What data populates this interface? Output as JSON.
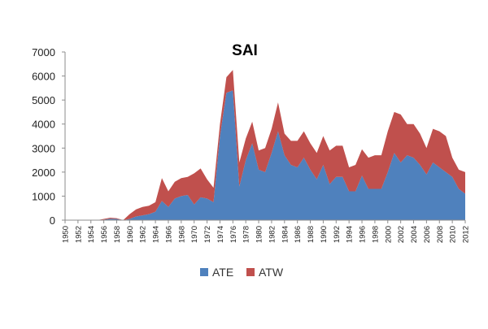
{
  "chart_data": {
    "type": "area",
    "title": "SAI",
    "xlabel": "",
    "ylabel": "",
    "stacked": true,
    "xlim": [
      1950,
      2012
    ],
    "ylim": [
      0,
      7000
    ],
    "y_ticks": [
      0,
      1000,
      2000,
      3000,
      4000,
      5000,
      6000,
      7000
    ],
    "x_ticks": [
      1950,
      1952,
      1954,
      1956,
      1958,
      1960,
      1962,
      1964,
      1966,
      1968,
      1970,
      1972,
      1974,
      1976,
      1978,
      1980,
      1982,
      1984,
      1986,
      1988,
      1990,
      1992,
      1994,
      1996,
      1998,
      2000,
      2002,
      2004,
      2006,
      2008,
      2010,
      2012
    ],
    "grid": false,
    "legend_position": "bottom",
    "years": [
      1950,
      1951,
      1952,
      1953,
      1954,
      1955,
      1956,
      1957,
      1958,
      1959,
      1960,
      1961,
      1962,
      1963,
      1964,
      1965,
      1966,
      1967,
      1968,
      1969,
      1970,
      1971,
      1972,
      1973,
      1974,
      1975,
      1976,
      1977,
      1978,
      1979,
      1980,
      1981,
      1982,
      1983,
      1984,
      1985,
      1986,
      1987,
      1988,
      1989,
      1990,
      1991,
      1992,
      1993,
      1994,
      1995,
      1996,
      1997,
      1998,
      1999,
      2000,
      2001,
      2002,
      2003,
      2004,
      2005,
      2006,
      2007,
      2008,
      2009,
      2010,
      2011,
      2012
    ],
    "series": [
      {
        "name": "ATE",
        "color": "#4F81BD",
        "values": [
          0,
          0,
          0,
          0,
          0,
          0,
          20,
          60,
          50,
          0,
          50,
          150,
          200,
          250,
          350,
          800,
          550,
          900,
          1000,
          1050,
          650,
          950,
          900,
          750,
          3500,
          5300,
          5400,
          1400,
          2500,
          3200,
          2100,
          2000,
          2800,
          3700,
          2700,
          2300,
          2200,
          2600,
          2100,
          1700,
          2300,
          1500,
          1800,
          1800,
          1200,
          1200,
          1850,
          1300,
          1300,
          1300,
          2000,
          2800,
          2400,
          2700,
          2600,
          2300,
          1900,
          2400,
          2200,
          2000,
          1800,
          1300,
          1100
        ]
      },
      {
        "name": "ATW",
        "color": "#C0504D",
        "values": [
          0,
          0,
          0,
          0,
          0,
          0,
          30,
          40,
          30,
          0,
          200,
          300,
          350,
          350,
          400,
          950,
          650,
          700,
          750,
          750,
          1300,
          1200,
          800,
          600,
          500,
          650,
          850,
          1000,
          900,
          900,
          800,
          1000,
          1000,
          1200,
          900,
          1000,
          1100,
          1100,
          1100,
          1100,
          1200,
          1400,
          1300,
          1300,
          1000,
          1100,
          1100,
          1300,
          1400,
          1400,
          1700,
          1700,
          2000,
          1300,
          1400,
          1300,
          1100,
          1400,
          1500,
          1500,
          800,
          800,
          900
        ]
      }
    ]
  }
}
